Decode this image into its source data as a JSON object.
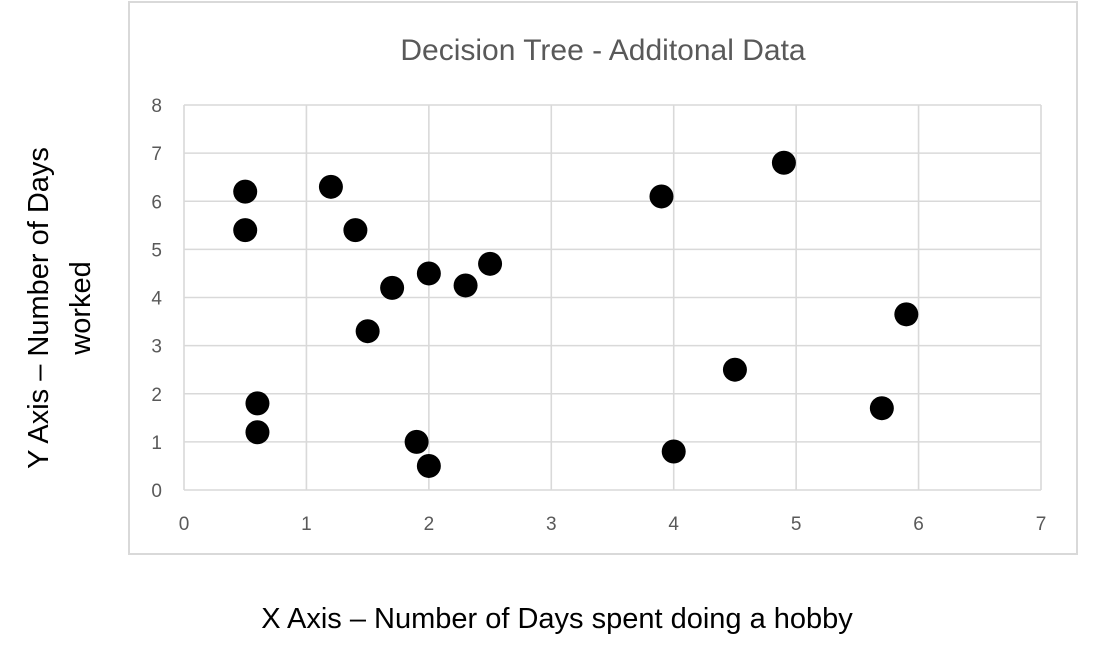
{
  "chart_data": {
    "type": "scatter",
    "title": "Decision Tree - Additonal Data",
    "xlabel": "X Axis – Number of Days spent doing a hobby",
    "ylabel_lines": [
      "Y Axis – Number of Days",
      "worked"
    ],
    "xlim": [
      0,
      7
    ],
    "ylim": [
      0,
      8
    ],
    "xticks": [
      0,
      1,
      2,
      3,
      4,
      5,
      6,
      7
    ],
    "yticks": [
      0,
      1,
      2,
      3,
      4,
      5,
      6,
      7,
      8
    ],
    "grid": true,
    "legend": "none",
    "marker_color": "#000000",
    "points": [
      {
        "x": 0.5,
        "y": 6.2
      },
      {
        "x": 0.5,
        "y": 5.4
      },
      {
        "x": 1.2,
        "y": 6.3
      },
      {
        "x": 1.4,
        "y": 5.4
      },
      {
        "x": 1.7,
        "y": 4.2
      },
      {
        "x": 1.5,
        "y": 3.3
      },
      {
        "x": 2.0,
        "y": 4.5
      },
      {
        "x": 2.3,
        "y": 4.25
      },
      {
        "x": 2.5,
        "y": 4.7
      },
      {
        "x": 0.6,
        "y": 1.8
      },
      {
        "x": 0.6,
        "y": 1.2
      },
      {
        "x": 1.9,
        "y": 1.0
      },
      {
        "x": 2.0,
        "y": 0.5
      },
      {
        "x": 3.9,
        "y": 6.1
      },
      {
        "x": 4.9,
        "y": 6.8
      },
      {
        "x": 4.5,
        "y": 2.5
      },
      {
        "x": 4.0,
        "y": 0.8
      },
      {
        "x": 5.9,
        "y": 3.65
      },
      {
        "x": 5.7,
        "y": 1.7
      }
    ]
  }
}
